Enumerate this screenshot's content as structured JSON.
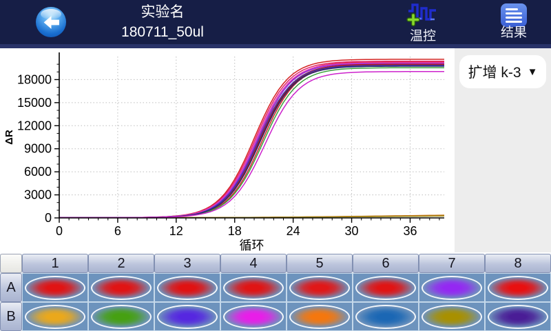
{
  "navbar": {
    "title": "实验名",
    "subtitle": "180711_50ul",
    "temp_label": "温控",
    "result_label": "结果"
  },
  "side_panel": {
    "dropdown_label": "扩增 k-3",
    "dropdown_arrow": "▼"
  },
  "chart_data": {
    "type": "line",
    "title": "",
    "xlabel": "循环",
    "ylabel": "ΔR",
    "xlim": [
      0,
      39.5
    ],
    "ylim": [
      0,
      21000
    ],
    "x_major_ticks": [
      0,
      6,
      12,
      18,
      24,
      30,
      36
    ],
    "y_major_ticks": [
      0,
      3000,
      6000,
      9000,
      12000,
      15000,
      18000
    ],
    "x_minor_step": 1,
    "y_minor_step": 1000,
    "grid": "dotted",
    "legend": "none",
    "series": [
      {
        "name": "A1",
        "color": "#d42222",
        "shape": "sigmoid",
        "plateau": 20600,
        "ct": 20.0
      },
      {
        "name": "A2",
        "color": "#e03030",
        "shape": "sigmoid",
        "plateau": 20250,
        "ct": 20.4
      },
      {
        "name": "A3",
        "color": "#c01a1a",
        "shape": "sigmoid",
        "plateau": 19900,
        "ct": 20.6
      },
      {
        "name": "A4",
        "color": "#8f1616",
        "shape": "sigmoid",
        "plateau": 19750,
        "ct": 20.5
      },
      {
        "name": "A5",
        "color": "#e2246a",
        "shape": "sigmoid",
        "plateau": 20350,
        "ct": 20.1
      },
      {
        "name": "A6",
        "color": "#d22626",
        "shape": "sigmoid",
        "plateau": 19850,
        "ct": 20.8
      },
      {
        "name": "A7",
        "color": "#8a2be2",
        "shape": "sigmoid",
        "plateau": 20050,
        "ct": 20.3
      },
      {
        "name": "A8",
        "color": "#b01c1c",
        "shape": "sigmoid",
        "plateau": 19950,
        "ct": 20.5
      },
      {
        "name": "B2",
        "color": "#3aa03a",
        "shape": "sigmoid",
        "plateau": 19500,
        "ct": 20.9
      },
      {
        "name": "B3",
        "color": "#3c34b4",
        "shape": "sigmoid",
        "plateau": 19800,
        "ct": 20.4
      },
      {
        "name": "B4",
        "color": "#d839c0",
        "shape": "sigmoid",
        "plateau": 20150,
        "ct": 20.2
      },
      {
        "name": "B6",
        "color": "#2a2a6e",
        "shape": "sigmoid",
        "plateau": 19700,
        "ct": 20.6
      },
      {
        "name": "B8",
        "color": "#cc22cc",
        "shape": "sigmoid",
        "plateau": 19000,
        "ct": 21.1
      },
      {
        "name": "B1",
        "color": "#e6a41e",
        "shape": "flat",
        "end": 300
      },
      {
        "name": "B5",
        "color": "#c87818",
        "shape": "flat",
        "end": 360
      },
      {
        "name": "B7",
        "color": "#9a8a20",
        "shape": "flat",
        "end": 240
      }
    ]
  },
  "plate": {
    "columns": [
      "1",
      "2",
      "3",
      "4",
      "5",
      "6",
      "7",
      "8"
    ],
    "rows": [
      {
        "label": "A",
        "wells": [
          {
            "id": "A1",
            "color": "#e01414"
          },
          {
            "id": "A2",
            "color": "#e01414"
          },
          {
            "id": "A3",
            "color": "#e01212"
          },
          {
            "id": "A4",
            "color": "#df1515"
          },
          {
            "id": "A5",
            "color": "#e01818"
          },
          {
            "id": "A6",
            "color": "#e01414"
          },
          {
            "id": "A7",
            "color": "#9428f2"
          },
          {
            "id": "A8",
            "color": "#e81010"
          }
        ]
      },
      {
        "label": "B",
        "wells": [
          {
            "id": "B1",
            "color": "#eaa81c"
          },
          {
            "id": "B2",
            "color": "#46a012"
          },
          {
            "id": "B3",
            "color": "#5627e0"
          },
          {
            "id": "B4",
            "color": "#e81ee8"
          },
          {
            "id": "B5",
            "color": "#f4770e"
          },
          {
            "id": "B6",
            "color": "#1b67b4"
          },
          {
            "id": "B7",
            "color": "#a89000"
          },
          {
            "id": "B8",
            "color": "#4a1d96"
          }
        ]
      }
    ]
  },
  "colors": {
    "navbar_bg": "#161e46",
    "accent_strip": "#293368",
    "panel_bg": "#ededed",
    "plate_cell_bg": "#6d93bd"
  }
}
